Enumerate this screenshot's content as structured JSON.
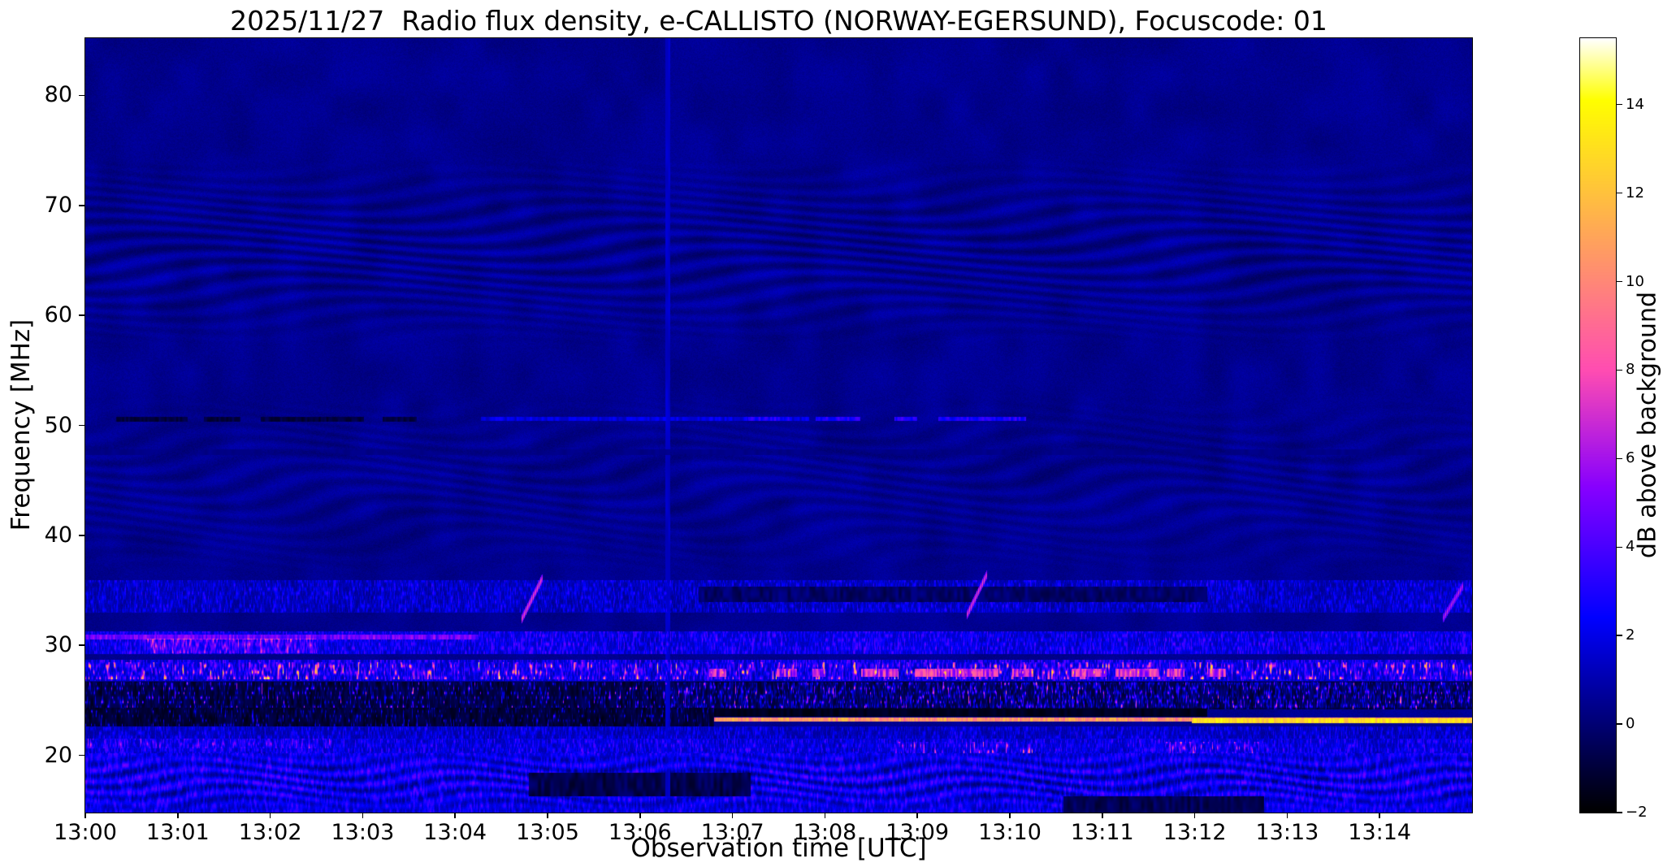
{
  "chart_data": {
    "type": "heatmap",
    "subtype": "radio-spectrogram",
    "title": "2025/11/27  Radio flux density, e-CALLISTO (NORWAY-EGERSUND), Focuscode: 01",
    "xlabel": "Observation time [UTC]",
    "ylabel": "Frequency [MHz]",
    "colorbar_label": "dB above background",
    "date": "2025/11/27",
    "instrument": "e-CALLISTO",
    "station": "NORWAY-EGERSUND",
    "focuscode": "01",
    "colormap": "gnuplot2",
    "x_range_seconds": [
      0,
      900
    ],
    "y_lim_mhz": [
      14.8,
      85.2
    ],
    "value_lim_db": [
      -2,
      15.5
    ],
    "background_db": 0.45,
    "grid": false,
    "legend": "colorbar-right",
    "x_ticks": [
      {
        "t": 0,
        "label": "13:00"
      },
      {
        "t": 60,
        "label": "13:01"
      },
      {
        "t": 120,
        "label": "13:02"
      },
      {
        "t": 180,
        "label": "13:03"
      },
      {
        "t": 240,
        "label": "13:04"
      },
      {
        "t": 300,
        "label": "13:05"
      },
      {
        "t": 360,
        "label": "13:06"
      },
      {
        "t": 420,
        "label": "13:07"
      },
      {
        "t": 480,
        "label": "13:08"
      },
      {
        "t": 540,
        "label": "13:09"
      },
      {
        "t": 600,
        "label": "13:10"
      },
      {
        "t": 660,
        "label": "13:11"
      },
      {
        "t": 720,
        "label": "13:12"
      },
      {
        "t": 780,
        "label": "13:13"
      },
      {
        "t": 840,
        "label": "13:14"
      }
    ],
    "y_ticks": [
      20,
      30,
      40,
      50,
      60,
      70,
      80
    ],
    "colorbar_ticks": [
      {
        "v": -2,
        "label": "−2"
      },
      {
        "v": 0,
        "label": "0"
      },
      {
        "v": 2,
        "label": "2"
      },
      {
        "v": 4,
        "label": "4"
      },
      {
        "v": 6,
        "label": "6"
      },
      {
        "v": 8,
        "label": "8"
      },
      {
        "v": 10,
        "label": "10"
      },
      {
        "v": 12,
        "label": "12"
      },
      {
        "v": 14,
        "label": "14"
      }
    ],
    "features": {
      "ripples": [
        {
          "name": "interference-fringes-60-74MHz",
          "f0": 57,
          "f1": 74.5,
          "amp": 0.55,
          "pf": 1.15,
          "wob": 5.5,
          "wt": 55,
          "drift": 140,
          "desc": "faint wavy fringe pattern 57-74 MHz"
        },
        {
          "name": "interference-fringes-36-53MHz",
          "f0": 36,
          "f1": 53,
          "amp": 0.32,
          "pf": 1.3,
          "wob": 6,
          "wt": 42,
          "drift": 160,
          "desc": "very faint fringes 36-53 MHz"
        },
        {
          "name": "ionospheric-waves-bottom",
          "f0": 14.8,
          "f1": 20.6,
          "amp": 1.25,
          "pf": 1.0,
          "wob": 4,
          "wt": 26,
          "drift": 90,
          "desc": "strong wavy blue HF structure below 20 MHz"
        }
      ],
      "bands": [
        {
          "name": "speckle-33-36",
          "desc": "persistent speckled RFI band 33-36 MHz",
          "mode": "speckle",
          "f0": 33.0,
          "f1": 35.9,
          "t0": 0,
          "t1": 900,
          "base": 0.2,
          "amp": 3.0,
          "pow": 2.2,
          "ts": 1.6,
          "fs": 2.6,
          "seed": 11
        },
        {
          "name": "dark-34-35-13:07-13:12",
          "desc": "darkened strip 33.9-35.3 MHz between 13:07 and 13:12",
          "mode": "dark",
          "f0": 33.9,
          "f1": 35.3,
          "t0": 398,
          "t1": 728,
          "base": -0.9,
          "amp": 1.4,
          "ts": 0.5,
          "fs": 1.2,
          "seed": 12
        },
        {
          "name": "speckle-29-31",
          "desc": "bright mottled band 29-31 MHz, strongest 13:00-13:04",
          "mode": "speckle",
          "f0": 29.2,
          "f1": 31.3,
          "t0": 0,
          "t1": 900,
          "base": 0.7,
          "amp": 3.6,
          "pow": 2.0,
          "ts": 1.6,
          "fs": 2.6,
          "seed": 21
        },
        {
          "name": "bright-line-30.8-early",
          "desc": "continuous bright line near 30.8 MHz 13:00-13:04",
          "mode": "line",
          "f0": 30.5,
          "f1": 31.0,
          "t0": 0,
          "t1": 255,
          "value": 4.8,
          "noise": 1.6,
          "ts": 1.2,
          "fs": 1.0,
          "seed": 22
        },
        {
          "name": "magenta-blobs-30-13:01",
          "mode": "speckle",
          "f0": 29.3,
          "f1": 30.6,
          "t0": 40,
          "t1": 150,
          "base": 0.5,
          "amp": 5.0,
          "pow": 3,
          "ts": 1.4,
          "fs": 2.0,
          "seed": 23
        },
        {
          "name": "speckle-27-28.7",
          "desc": "strong mottled RFI band 27-28.7 MHz, whole interval",
          "mode": "speckle",
          "f0": 26.8,
          "f1": 28.7,
          "t0": 0,
          "t1": 900,
          "base": 0.5,
          "amp": 4.2,
          "pow": 2.0,
          "ts": 1.6,
          "fs": 2.6,
          "seed": 31
        },
        {
          "name": "yellow-hotspots-27-28.5",
          "desc": "sparse yellow/orange bursts inside 27-28.5 MHz band",
          "mode": "speckle",
          "f0": 26.9,
          "f1": 28.5,
          "t0": 0,
          "t1": 900,
          "base": 0.0,
          "amp": 13.0,
          "pow": 6,
          "ts": 1.0,
          "fs": 1.8,
          "seed": 32
        },
        {
          "name": "orange-dashes-27.5-13:07-13:12",
          "mode": "line",
          "f0": 27.1,
          "f1": 27.9,
          "t0": 405,
          "t1": 740,
          "value": 6.5,
          "noise": 3.0,
          "gate": 0.45,
          "gts": 0.09,
          "ts": 1.0,
          "fs": 1.2,
          "seed": 33
        },
        {
          "name": "dark-band-24-26.7",
          "desc": "suppressed/black band 24-26.7 MHz",
          "mode": "dark",
          "f0": 24.2,
          "f1": 26.7,
          "t0": 0,
          "t1": 900,
          "base": -1.6,
          "amp": 1.3,
          "ts": 0.6,
          "fs": 1.1,
          "seed": 41
        },
        {
          "name": "specks-in-dark-24-26.7",
          "mode": "speckle",
          "f0": 24.2,
          "f1": 26.7,
          "t0": 0,
          "t1": 900,
          "base": 0.0,
          "amp": 9.5,
          "pow": 7,
          "ts": 1.6,
          "fs": 2.4,
          "seed": 42
        },
        {
          "name": "more-specks-25-after-13:06",
          "mode": "speckle",
          "f0": 24.3,
          "f1": 26.6,
          "t0": 380,
          "t1": 900,
          "base": 0.2,
          "amp": 6.5,
          "pow": 5,
          "ts": 1.6,
          "fs": 2.4,
          "seed": 43
        },
        {
          "name": "dark-23-24-before-13:07",
          "desc": "black strip 22.6-24.3 MHz before 13:06:45",
          "mode": "dark",
          "f0": 22.6,
          "f1": 24.3,
          "t0": 0,
          "t1": 408,
          "base": -1.7,
          "amp": 1.1,
          "ts": 0.55,
          "fs": 1.0,
          "seed": 51
        },
        {
          "name": "specks-23-before-13:07",
          "mode": "speckle",
          "f0": 22.6,
          "f1": 24.3,
          "t0": 0,
          "t1": 408,
          "base": 0.0,
          "amp": 5.5,
          "pow": 7,
          "ts": 1.6,
          "fs": 2.4,
          "seed": 52
        },
        {
          "name": "dark-23.5-24.2-13:07-13:12",
          "mode": "dark",
          "f0": 23.5,
          "f1": 24.25,
          "t0": 408,
          "t1": 728,
          "base": -1.8,
          "amp": 0.7,
          "ts": 0.5,
          "fs": 1.0,
          "seed": 63
        },
        {
          "name": "bright-carrier-23.2-after-13:06:45",
          "desc": "continuous orange carrier ~23.2 MHz switching on at ~13:06:45",
          "mode": "line",
          "f0": 23.05,
          "f1": 23.45,
          "t0": 408,
          "t1": 900,
          "value": 10.5,
          "noise": 2.2,
          "ts": 1.4,
          "fs": 0.9,
          "seed": 61
        },
        {
          "name": "brighter-carrier-23-after-13:12",
          "desc": "carrier brightens to near-white after ~13:12",
          "mode": "line",
          "f0": 22.9,
          "f1": 23.35,
          "t0": 718,
          "t1": 900,
          "value": 12.8,
          "noise": 1.6,
          "ts": 1.4,
          "fs": 0.9,
          "seed": 62
        },
        {
          "name": "speckle-21.5-22.6",
          "mode": "speckle",
          "f0": 21.5,
          "f1": 22.6,
          "t0": 0,
          "t1": 900,
          "base": 0.3,
          "amp": 2.8,
          "pow": 2.2,
          "ts": 1.6,
          "fs": 2.6,
          "seed": 71
        },
        {
          "name": "speckle-20.2-21.5",
          "mode": "speckle",
          "f0": 20.2,
          "f1": 21.5,
          "t0": 0,
          "t1": 900,
          "base": 0.6,
          "amp": 3.4,
          "pow": 2.0,
          "ts": 1.6,
          "fs": 2.6,
          "seed": 81
        },
        {
          "name": "pink-spots-20.5-13:09",
          "mode": "speckle",
          "f0": 20.2,
          "f1": 21.2,
          "t0": 525,
          "t1": 615,
          "base": 0.0,
          "amp": 9.0,
          "pow": 5,
          "ts": 1.2,
          "fs": 1.8,
          "seed": 82
        },
        {
          "name": "bright-21-13:00-13:02",
          "mode": "speckle",
          "f0": 20.6,
          "f1": 21.5,
          "t0": 0,
          "t1": 160,
          "base": 0.0,
          "amp": 6.0,
          "pow": 5,
          "ts": 1.2,
          "fs": 1.8,
          "seed": 83
        },
        {
          "name": "bright-20.7-13:12",
          "mode": "speckle",
          "f0": 20.2,
          "f1": 21.2,
          "t0": 700,
          "t1": 770,
          "base": 0.0,
          "amp": 7.5,
          "pow": 5,
          "ts": 1.2,
          "fs": 1.8,
          "seed": 84
        },
        {
          "name": "wavy-blue-bottom-15-20",
          "desc": "dense wavy blue structure 15-20 MHz, whole interval",
          "mode": "speckle",
          "f0": 14.8,
          "f1": 20.2,
          "t0": 0,
          "t1": 900,
          "base": 0.7,
          "amp": 2.8,
          "pow": 1.7,
          "ts": 1.1,
          "fs": 1.9,
          "seed": 91
        },
        {
          "name": "dark-gap-17-13:05",
          "mode": "dark",
          "f0": 16.3,
          "f1": 18.4,
          "t0": 288,
          "t1": 432,
          "base": -1.4,
          "amp": 1.5,
          "ts": 0.5,
          "fs": 0.9,
          "seed": 92
        },
        {
          "name": "dark-gap-15.5-13:11",
          "mode": "dark",
          "f0": 14.8,
          "f1": 16.3,
          "t0": 635,
          "t1": 765,
          "base": -1.2,
          "amp": 1.4,
          "ts": 0.5,
          "fs": 0.9,
          "seed": 93
        },
        {
          "name": "rfi-50.5-dark-dashes-early",
          "desc": "intermittent black dashes at 50.5 MHz 13:00-13:03.5",
          "mode": "dark",
          "f0": 50.35,
          "f1": 50.8,
          "t0": 20,
          "t1": 215,
          "base": -1.4,
          "amp": 1.0,
          "gate": 0.3,
          "gts": 0.06,
          "ts": 0.8,
          "fs": 1.0,
          "seed": 101
        },
        {
          "name": "rfi-50.5-faint-blue-mid",
          "mode": "line",
          "f0": 50.4,
          "f1": 50.75,
          "t0": 250,
          "t1": 470,
          "value": 1.9,
          "noise": 0.8,
          "gate": 0.35,
          "gts": 0.05,
          "ts": 0.8,
          "fs": 1.0,
          "seed": 102
        },
        {
          "name": "rfi-50.5-purple-13:07-13:10",
          "mode": "line",
          "f0": 50.4,
          "f1": 50.75,
          "t0": 430,
          "t1": 640,
          "value": 2.9,
          "noise": 1.3,
          "gate": 0.4,
          "gts": 0.06,
          "ts": 0.8,
          "fs": 1.0,
          "seed": 103
        },
        {
          "name": "faint-vertical-line-13:06",
          "mode": "line",
          "f0": 14.8,
          "f1": 85.2,
          "t0": 376.5,
          "t1": 379.5,
          "value": 1.4,
          "noise": 0.4,
          "ts": 0.5,
          "fs": 0.5,
          "seed": 111
        },
        {
          "name": "faint-dark-line-47.5",
          "mode": "dark",
          "f0": 47.3,
          "f1": 47.8,
          "t0": 0,
          "t1": 900,
          "base": 0.15,
          "amp": 0.35,
          "ts": 0.4,
          "fs": 1.0,
          "seed": 112
        }
      ],
      "bursts": [
        {
          "name": "drifting-burst-13:04:45",
          "desc": "short upward-drifting bright streak 32-36 MHz",
          "t0": 283,
          "f0": 32.3,
          "t1": 297,
          "f1": 36.2,
          "value": 9.5
        },
        {
          "name": "drifting-burst-13:09:35",
          "desc": "short upward-drifting bright streak 33-36 MHz",
          "t0": 572,
          "f0": 32.7,
          "t1": 585,
          "f1": 36.4,
          "value": 9.2
        },
        {
          "name": "drifting-burst-13:14:45",
          "desc": "faint drifting streak near right edge 33-35 MHz",
          "t0": 881,
          "f0": 32.4,
          "t1": 894,
          "f1": 35.4,
          "value": 7.8
        }
      ]
    }
  }
}
